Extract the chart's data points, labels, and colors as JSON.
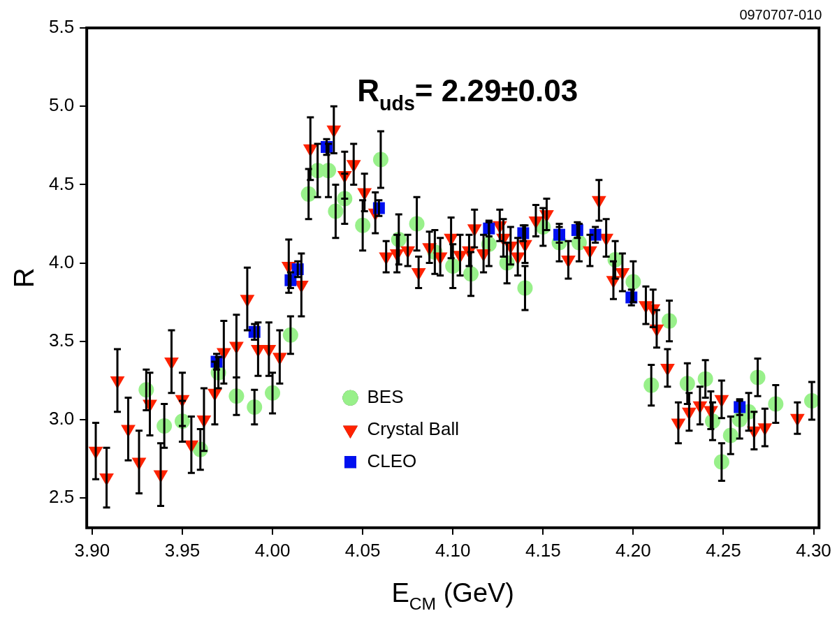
{
  "chart_data": {
    "type": "scatter",
    "xlabel": "E$_{CM}$ (GeV)",
    "ylabel": "R",
    "annotations": [
      "R$_{uds}$= 2.29±0.03",
      "0970707-010"
    ],
    "xlim": [
      3.897,
      4.303
    ],
    "ylim": [
      2.31,
      5.5
    ],
    "xticks": [
      {
        "value": 3.9,
        "label": "3.90"
      },
      {
        "value": 3.95,
        "label": "3.95"
      },
      {
        "value": 4.0,
        "label": "4.00"
      },
      {
        "value": 4.05,
        "label": "4.05"
      },
      {
        "value": 4.1,
        "label": "4.10"
      },
      {
        "value": 4.15,
        "label": "4.15"
      },
      {
        "value": 4.2,
        "label": "4.20"
      },
      {
        "value": 4.25,
        "label": "4.25"
      },
      {
        "value": 4.3,
        "label": "4.30"
      }
    ],
    "yticks": [
      2.5,
      {
        "value": 3.0,
        "label": "3.0"
      },
      3.5,
      {
        "value": 4.0,
        "label": "4.0"
      },
      4.5,
      {
        "value": 5.0,
        "label": "5.0"
      },
      5.5
    ],
    "grid": false,
    "legend": "bottom left",
    "series": [
      {
        "name": "BES",
        "color": "#98f08a",
        "marker": "circle",
        "x": [
          3.93,
          3.94,
          3.95,
          3.96,
          3.97,
          3.98,
          3.99,
          4.0,
          4.01,
          4.02,
          4.025,
          4.031,
          4.035,
          4.04,
          4.05,
          4.06,
          4.07,
          4.08,
          4.09,
          4.1,
          4.11,
          4.12,
          4.13,
          4.14,
          4.15,
          4.159,
          4.17,
          4.19,
          4.2,
          4.21,
          4.22,
          4.23,
          4.24,
          4.244,
          4.249,
          4.254,
          4.259,
          4.264,
          4.269,
          4.279,
          4.299
        ],
        "values": [
          3.19,
          2.96,
          2.99,
          2.81,
          3.3,
          3.15,
          3.08,
          3.17,
          3.54,
          4.44,
          4.59,
          4.59,
          4.33,
          4.41,
          4.24,
          4.66,
          4.15,
          4.25,
          4.07,
          3.98,
          3.93,
          4.12,
          4.0,
          3.84,
          4.23,
          4.13,
          4.13,
          4.02,
          3.88,
          3.22,
          3.63,
          3.23,
          3.26,
          2.99,
          2.73,
          2.9,
          3.0,
          3.05,
          3.27,
          3.1,
          3.12
        ],
        "errors": [
          0.13,
          0.14,
          0.13,
          0.13,
          0.1,
          0.12,
          0.11,
          0.13,
          0.12,
          0.16,
          0.17,
          0.17,
          0.17,
          0.16,
          0.16,
          0.18,
          0.16,
          0.17,
          0.14,
          0.14,
          0.14,
          0.14,
          0.13,
          0.14,
          0.12,
          0.12,
          0.12,
          0.12,
          0.13,
          0.13,
          0.13,
          0.13,
          0.12,
          0.12,
          0.12,
          0.12,
          0.12,
          0.12,
          0.12,
          0.12,
          0.12
        ]
      },
      {
        "name": "Crystal Ball",
        "color": "#ff2200",
        "marker": "triangle",
        "x": [
          3.902,
          3.908,
          3.914,
          3.92,
          3.926,
          3.932,
          3.938,
          3.944,
          3.95,
          3.955,
          3.962,
          3.968,
          3.973,
          3.98,
          3.986,
          3.992,
          3.998,
          4.004,
          4.009,
          4.016,
          4.021,
          4.034,
          4.04,
          4.045,
          4.051,
          4.057,
          4.063,
          4.069,
          4.075,
          4.081,
          4.087,
          4.093,
          4.099,
          4.104,
          4.109,
          4.112,
          4.117,
          4.126,
          4.128,
          4.132,
          4.136,
          4.14,
          4.146,
          4.152,
          4.164,
          4.176,
          4.181,
          4.185,
          4.189,
          4.194,
          4.207,
          4.211,
          4.213,
          4.219,
          4.225,
          4.231,
          4.237,
          4.243,
          4.249,
          4.267,
          4.273,
          4.291
        ],
        "values": [
          2.8,
          2.63,
          3.25,
          2.94,
          2.73,
          3.1,
          2.65,
          3.37,
          3.13,
          2.84,
          3.0,
          3.17,
          3.43,
          3.47,
          3.77,
          3.45,
          3.45,
          3.4,
          3.98,
          3.86,
          4.73,
          4.85,
          4.56,
          4.63,
          4.45,
          4.32,
          4.04,
          4.06,
          4.08,
          3.94,
          4.1,
          4.04,
          4.16,
          4.05,
          4.08,
          4.22,
          4.06,
          4.24,
          4.16,
          4.11,
          4.04,
          4.12,
          4.27,
          4.31,
          4.02,
          4.08,
          4.4,
          4.16,
          3.89,
          3.94,
          3.73,
          3.71,
          3.58,
          3.33,
          2.98,
          3.05,
          3.09,
          3.06,
          3.13,
          2.93,
          2.95,
          3.01
        ],
        "errors": [
          0.18,
          0.19,
          0.2,
          0.2,
          0.2,
          0.2,
          0.2,
          0.2,
          0.17,
          0.18,
          0.2,
          0.2,
          0.2,
          0.2,
          0.2,
          0.17,
          0.17,
          0.17,
          0.17,
          0.2,
          0.2,
          0.15,
          0.15,
          0.13,
          0.12,
          0.13,
          0.1,
          0.12,
          0.1,
          0.1,
          0.1,
          0.12,
          0.13,
          0.13,
          0.1,
          0.12,
          0.12,
          0.1,
          0.12,
          0.12,
          0.12,
          0.12,
          0.1,
          0.1,
          0.12,
          0.1,
          0.13,
          0.12,
          0.12,
          0.12,
          0.12,
          0.12,
          0.12,
          0.12,
          0.13,
          0.12,
          0.12,
          0.12,
          0.12,
          0.12,
          0.12,
          0.1
        ]
      },
      {
        "name": "CLEO",
        "color": "#0010f0",
        "marker": "square",
        "x": [
          3.969,
          3.99,
          4.01,
          4.014,
          4.03,
          4.059,
          4.12,
          4.139,
          4.159,
          4.169,
          4.179,
          4.199,
          4.259
        ],
        "values": [
          3.37,
          3.56,
          3.89,
          3.96,
          4.74,
          4.35,
          4.22,
          4.19,
          4.18,
          4.21,
          4.18,
          3.78,
          3.08
        ],
        "errors": [
          0.05,
          0.05,
          0.05,
          0.05,
          0.05,
          0.05,
          0.05,
          0.05,
          0.05,
          0.05,
          0.05,
          0.05,
          0.05
        ]
      }
    ]
  }
}
